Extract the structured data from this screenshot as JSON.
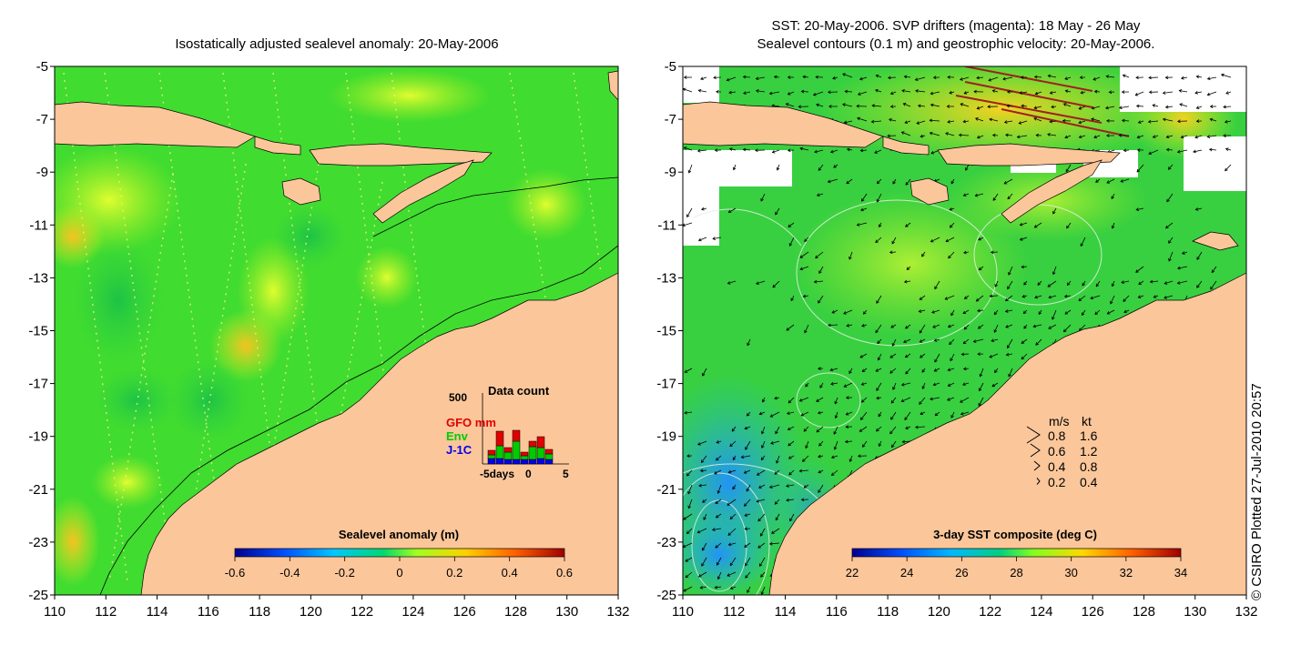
{
  "left_panel": {
    "title": "Isostatically adjusted sealevel anomaly: 20-May-2006",
    "y_ticks": [
      "-5",
      "-7",
      "-9",
      "-11",
      "-13",
      "-15",
      "-17",
      "-19",
      "-21",
      "-23",
      "-25"
    ],
    "x_ticks": [
      "110",
      "112",
      "114",
      "116",
      "118",
      "120",
      "122",
      "124",
      "126",
      "128",
      "130",
      "132"
    ],
    "colorbar": {
      "title": "Sealevel anomaly (m)",
      "ticks": [
        "-0.6",
        "-0.4",
        "-0.2",
        "0",
        "0.2",
        "0.4",
        "0.6"
      ]
    },
    "data_count": {
      "title": "Data count",
      "y_max_label": "500",
      "legend": [
        {
          "label": "GFO mm",
          "color": "#e00000"
        },
        {
          "label": "Env",
          "color": "#00cc00"
        },
        {
          "label": "J-1C",
          "color": "#0000ee"
        }
      ],
      "x_labels": [
        "-5days",
        "0",
        "5"
      ]
    }
  },
  "right_panel": {
    "title_line1": "SST: 20-May-2006. SVP drifters (magenta): 18 May - 26 May",
    "title_line2": "Sealevel contours (0.1 m) and geostrophic velocity: 20-May-2006.",
    "y_ticks": [
      "-5",
      "-7",
      "-9",
      "-11",
      "-13",
      "-15",
      "-17",
      "-19",
      "-21",
      "-23",
      "-25"
    ],
    "x_ticks": [
      "110",
      "112",
      "114",
      "116",
      "118",
      "120",
      "122",
      "124",
      "126",
      "128",
      "130",
      "132"
    ],
    "colorbar": {
      "title": "3-day SST composite (deg C)",
      "ticks": [
        "22",
        "24",
        "26",
        "28",
        "30",
        "32",
        "34"
      ]
    },
    "velocity_legend": {
      "header_ms": "m/s",
      "header_kt": "kt",
      "rows": [
        {
          "ms": "0.8",
          "kt": "1.6"
        },
        {
          "ms": "0.6",
          "kt": "1.2"
        },
        {
          "ms": "0.4",
          "kt": "0.8"
        },
        {
          "ms": "0.2",
          "kt": "0.4"
        }
      ]
    }
  },
  "credit": "© CSIRO Plotted 27-Jul-2010 20:57",
  "colors": {
    "land": "#fbc69a",
    "sla_colorbar": [
      "#000080",
      "#0040ff",
      "#00c0ff",
      "#00e070",
      "#90ff30",
      "#ffd000",
      "#ff6000",
      "#b00000"
    ],
    "sst_colorbar": [
      "#000080",
      "#0040ff",
      "#00b0ff",
      "#00d080",
      "#60ff30",
      "#ffe000",
      "#ff7000",
      "#b00000"
    ]
  }
}
